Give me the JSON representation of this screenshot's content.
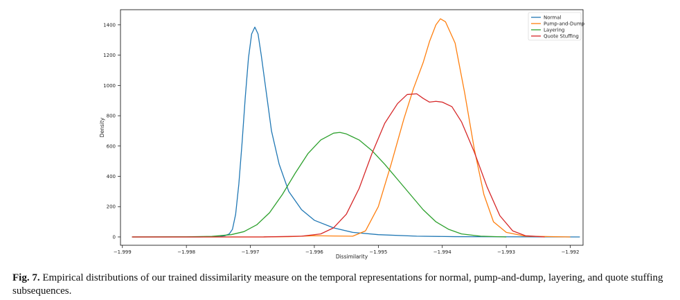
{
  "chart_data": {
    "type": "line",
    "title": "",
    "xlabel": "Dissimilarity",
    "ylabel": "Density",
    "xlim": [
      -1.99903,
      -1.9918
    ],
    "ylim": [
      -55,
      1500
    ],
    "x_ticks": [
      -1.999,
      -1.998,
      -1.997,
      -1.996,
      -1.995,
      -1.994,
      -1.993,
      -1.992
    ],
    "x_tick_labels": [
      "-1.999",
      "-1.998",
      "-1.997",
      "-1.996",
      "-1.995",
      "-1.994",
      "-1.993",
      "-1.992"
    ],
    "y_ticks": [
      0,
      200,
      400,
      600,
      800,
      1000,
      1200,
      1400
    ],
    "y_tick_labels": [
      "0",
      "200",
      "400",
      "600",
      "800",
      "1000",
      "1200",
      "1400"
    ],
    "grid": false,
    "legend_position": "top-right",
    "series": [
      {
        "name": "Normal",
        "color": "#1f77b4",
        "points": [
          [
            -1.99885,
            0
          ],
          [
            -1.9978,
            0
          ],
          [
            -1.99747,
            3
          ],
          [
            -1.9974,
            8
          ],
          [
            -1.99733,
            20
          ],
          [
            -1.99728,
            50
          ],
          [
            -1.99723,
            150
          ],
          [
            -1.99718,
            350
          ],
          [
            -1.99713,
            620
          ],
          [
            -1.99708,
            920
          ],
          [
            -1.99703,
            1180
          ],
          [
            -1.99698,
            1340
          ],
          [
            -1.99693,
            1385
          ],
          [
            -1.99688,
            1340
          ],
          [
            -1.99683,
            1200
          ],
          [
            -1.99675,
            950
          ],
          [
            -1.99667,
            700
          ],
          [
            -1.99655,
            480
          ],
          [
            -1.9964,
            300
          ],
          [
            -1.9962,
            180
          ],
          [
            -1.996,
            110
          ],
          [
            -1.9957,
            60
          ],
          [
            -1.9954,
            30
          ],
          [
            -1.995,
            15
          ],
          [
            -1.9944,
            5
          ],
          [
            -1.9938,
            2
          ],
          [
            -1.993,
            1
          ],
          [
            -1.99185,
            0
          ]
        ]
      },
      {
        "name": "Pump-and-Dump",
        "color": "#ff7f0e",
        "points": [
          [
            -1.99885,
            0
          ],
          [
            -1.9968,
            0
          ],
          [
            -1.9964,
            2
          ],
          [
            -1.996,
            8
          ],
          [
            -1.9957,
            6
          ],
          [
            -1.9954,
            5
          ],
          [
            -1.9952,
            40
          ],
          [
            -1.995,
            200
          ],
          [
            -1.9948,
            480
          ],
          [
            -1.9946,
            780
          ],
          [
            -1.99445,
            980
          ],
          [
            -1.9943,
            1150
          ],
          [
            -1.9942,
            1290
          ],
          [
            -1.9941,
            1400
          ],
          [
            -1.99403,
            1440
          ],
          [
            -1.99395,
            1420
          ],
          [
            -1.9938,
            1280
          ],
          [
            -1.99365,
            950
          ],
          [
            -1.9935,
            580
          ],
          [
            -1.99335,
            280
          ],
          [
            -1.9932,
            100
          ],
          [
            -1.993,
            30
          ],
          [
            -1.9927,
            5
          ],
          [
            -1.992,
            0
          ]
        ]
      },
      {
        "name": "Layering",
        "color": "#2ca02c",
        "points": [
          [
            -1.99885,
            0
          ],
          [
            -1.998,
            1
          ],
          [
            -1.9976,
            4
          ],
          [
            -1.9973,
            15
          ],
          [
            -1.9971,
            35
          ],
          [
            -1.9969,
            80
          ],
          [
            -1.9967,
            160
          ],
          [
            -1.9965,
            280
          ],
          [
            -1.9963,
            420
          ],
          [
            -1.9961,
            550
          ],
          [
            -1.9959,
            640
          ],
          [
            -1.9957,
            685
          ],
          [
            -1.9956,
            690
          ],
          [
            -1.9955,
            680
          ],
          [
            -1.9953,
            640
          ],
          [
            -1.9951,
            570
          ],
          [
            -1.9949,
            480
          ],
          [
            -1.9947,
            380
          ],
          [
            -1.9945,
            280
          ],
          [
            -1.9943,
            180
          ],
          [
            -1.9941,
            100
          ],
          [
            -1.9939,
            50
          ],
          [
            -1.9937,
            20
          ],
          [
            -1.9934,
            5
          ],
          [
            -1.993,
            0
          ]
        ]
      },
      {
        "name": "Quote Stuffing",
        "color": "#d62728",
        "points": [
          [
            -1.99885,
            0
          ],
          [
            -1.9968,
            0
          ],
          [
            -1.9962,
            5
          ],
          [
            -1.9959,
            20
          ],
          [
            -1.9957,
            60
          ],
          [
            -1.9955,
            150
          ],
          [
            -1.9953,
            320
          ],
          [
            -1.9951,
            550
          ],
          [
            -1.9949,
            750
          ],
          [
            -1.9947,
            880
          ],
          [
            -1.99455,
            940
          ],
          [
            -1.9944,
            945
          ],
          [
            -1.9943,
            915
          ],
          [
            -1.9942,
            890
          ],
          [
            -1.9941,
            895
          ],
          [
            -1.994,
            890
          ],
          [
            -1.99385,
            860
          ],
          [
            -1.9937,
            760
          ],
          [
            -1.9935,
            560
          ],
          [
            -1.9933,
            330
          ],
          [
            -1.9931,
            140
          ],
          [
            -1.9929,
            40
          ],
          [
            -1.9927,
            8
          ],
          [
            -1.9924,
            0
          ]
        ]
      }
    ]
  },
  "caption": {
    "label": "Fig. 7.",
    "text": "Empirical distributions of our trained dissimilarity measure on the temporal representations for normal, pump-and-dump, layering, and quote stuffing subsequences."
  }
}
